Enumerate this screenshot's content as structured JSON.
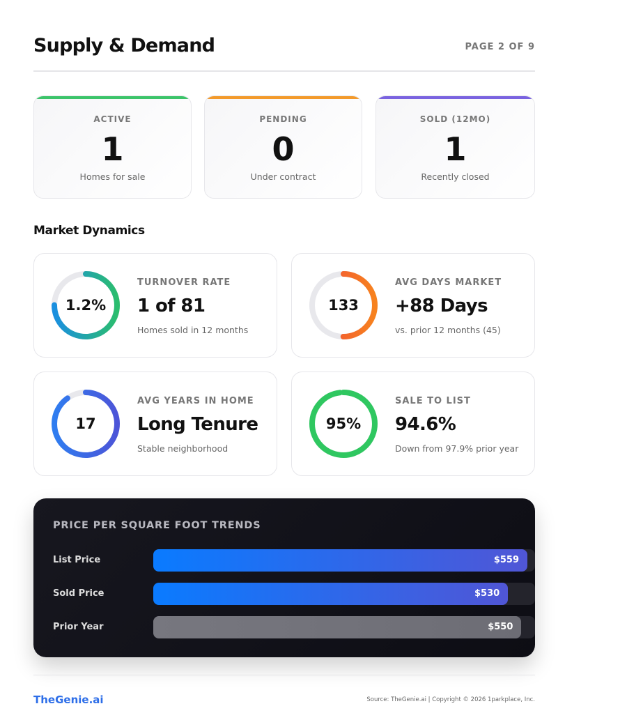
{
  "header": {
    "title": "Supply & Demand",
    "page": "PAGE 2 OF 9"
  },
  "stats": [
    {
      "label": "ACTIVE",
      "value": "1",
      "caption": "Homes for sale"
    },
    {
      "label": "PENDING",
      "value": "0",
      "caption": "Under contract"
    },
    {
      "label": "SOLD (12MO)",
      "value": "1",
      "caption": "Recently closed"
    }
  ],
  "dynamics": {
    "title": "Market Dynamics",
    "cards": [
      {
        "ring": "1.2%",
        "label": "TURNOVER RATE",
        "value": "1 of 81",
        "caption": "Homes sold in 12 months"
      },
      {
        "ring": "133",
        "label": "AVG DAYS MARKET",
        "value": "+88 Days",
        "caption": "vs. prior 12 months (45)"
      },
      {
        "ring": "17",
        "label": "AVG YEARS IN HOME",
        "value": "Long Tenure",
        "caption": "Stable neighborhood"
      },
      {
        "ring": "95%",
        "label": "SALE TO LIST",
        "value": "94.6%",
        "caption": "Down from 97.9% prior year"
      }
    ]
  },
  "price_trends": {
    "title": "PRICE PER SQUARE FOOT TRENDS",
    "rows": [
      {
        "label": "List Price",
        "value": 559,
        "value_label": "$559"
      },
      {
        "label": "Sold Price",
        "value": 530,
        "value_label": "$530"
      },
      {
        "label": "Prior Year",
        "value": 550,
        "value_label": "$550"
      }
    ]
  },
  "footer": {
    "brand": "TheGenie.ai",
    "note": "Source: TheGenie.ai | Copyright © 2026 1parkplace, Inc."
  }
}
